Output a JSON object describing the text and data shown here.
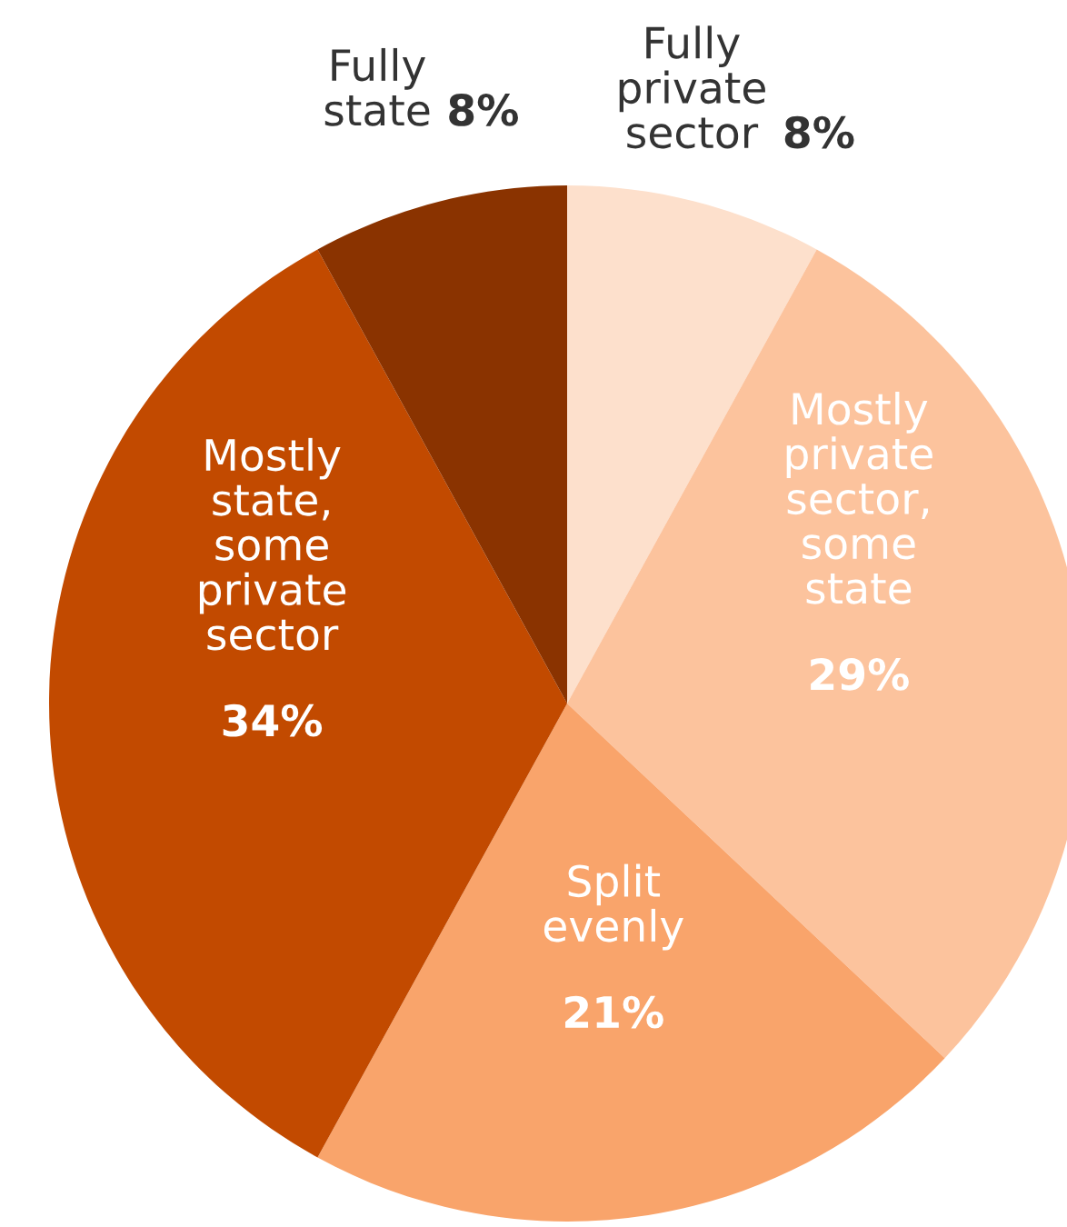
{
  "chart_data": {
    "type": "pie",
    "categories": [
      "Fully\nprivate\nsector",
      "Mostly\nprivate\nsector,\nsome\nstate",
      "Split\nevenly",
      "Mostly\nstate,\nsome\nprivate\nsector",
      "Fully\nstate"
    ],
    "values": [
      8,
      29,
      21,
      34,
      8
    ],
    "value_labels": [
      "8%",
      "29%",
      "21%",
      "34%",
      "8%"
    ],
    "colors": [
      "#fde0cc",
      "#fcc39d",
      "#f9a46b",
      "#c24a00",
      "#8a3300"
    ],
    "legend": false
  }
}
